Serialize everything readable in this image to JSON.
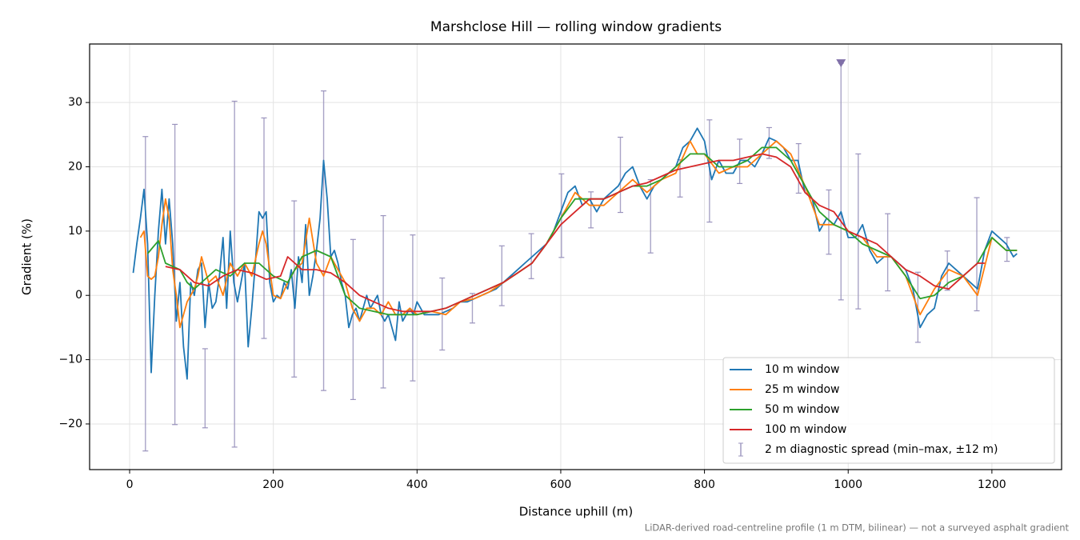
{
  "chart_data": {
    "type": "line",
    "title": "Marshclose Hill — rolling window gradients",
    "xlabel": "Distance uphill (m)",
    "ylabel": "Gradient (%)",
    "note": "LiDAR-derived road-centreline profile (1 m DTM, bilinear) — not a surveyed asphalt gradient",
    "xlim": [
      -55.7,
      1297
    ],
    "ylim": [
      -27.1,
      39.1
    ],
    "xticks": [
      0,
      200,
      400,
      600,
      800,
      1000,
      1200
    ],
    "yticks": [
      {
        "value": -20,
        "label": "−20"
      },
      {
        "value": -10,
        "label": "−10"
      },
      0,
      10,
      20,
      30
    ],
    "grid": true,
    "legend": "lower right",
    "series": [
      {
        "name": "10 m window",
        "color": "#1f77b4",
        "x": [
          5,
          10,
          15,
          20,
          25,
          30,
          35,
          40,
          45,
          50,
          55,
          60,
          65,
          70,
          75,
          80,
          85,
          90,
          95,
          100,
          105,
          110,
          115,
          120,
          125,
          130,
          135,
          140,
          145,
          150,
          155,
          160,
          165,
          170,
          175,
          180,
          185,
          190,
          195,
          200,
          205,
          210,
          215,
          220,
          225,
          230,
          235,
          240,
          245,
          250,
          255,
          260,
          265,
          270,
          275,
          280,
          285,
          290,
          295,
          300,
          305,
          310,
          315,
          320,
          325,
          330,
          335,
          340,
          345,
          350,
          355,
          360,
          365,
          370,
          375,
          380,
          385,
          390,
          395,
          400,
          405,
          410,
          420,
          430,
          440,
          450,
          460,
          470,
          480,
          490,
          500,
          510,
          520,
          530,
          540,
          550,
          560,
          570,
          580,
          590,
          600,
          610,
          620,
          630,
          640,
          650,
          660,
          670,
          680,
          690,
          700,
          710,
          720,
          730,
          740,
          750,
          760,
          770,
          780,
          790,
          800,
          810,
          820,
          830,
          840,
          850,
          860,
          870,
          880,
          890,
          900,
          910,
          920,
          930,
          940,
          950,
          960,
          970,
          980,
          990,
          1000,
          1010,
          1020,
          1030,
          1040,
          1050,
          1060,
          1070,
          1080,
          1090,
          1100,
          1110,
          1120,
          1130,
          1140,
          1150,
          1160,
          1170,
          1180,
          1190,
          1200,
          1210,
          1220,
          1230,
          1235
        ],
        "values": [
          3.5,
          8,
          12,
          16.5,
          8,
          -12,
          0,
          10,
          16.5,
          8,
          15,
          8,
          -4,
          2,
          -8,
          -13,
          2,
          0,
          4,
          5,
          -5,
          2,
          -2,
          -1,
          3,
          9,
          -2,
          10,
          2,
          -1,
          2,
          5,
          -8,
          -2,
          5,
          13,
          12,
          13,
          2,
          -1,
          0,
          -0.5,
          2,
          1,
          4,
          -2,
          6,
          2,
          11,
          0,
          3,
          7,
          12,
          21,
          15,
          6,
          7,
          5,
          2,
          0,
          -5,
          -3,
          -2,
          -4,
          -2,
          0,
          -2,
          -1,
          0,
          -3,
          -4,
          -3,
          -5,
          -7,
          -1,
          -4,
          -3,
          -2,
          -3,
          -1,
          -2,
          -3,
          -3,
          -3,
          -2.5,
          -2,
          -1,
          -1,
          -0.5,
          0,
          0.5,
          1,
          2,
          3,
          4,
          5,
          6,
          7,
          8,
          10,
          13,
          16,
          17,
          14,
          15,
          13,
          15,
          16,
          17,
          19,
          20,
          17,
          15,
          17,
          18,
          19,
          20,
          23,
          24,
          26,
          24,
          18,
          21,
          19,
          19,
          21,
          21,
          20,
          22,
          24.5,
          24,
          23,
          21,
          21,
          16,
          15,
          10,
          12,
          11,
          13,
          9,
          9,
          11,
          7,
          5,
          6,
          6,
          5,
          4,
          1,
          -5,
          -3,
          -2,
          3,
          5,
          4,
          3,
          2,
          1,
          7,
          10,
          9,
          8,
          6,
          6.5
        ]
      },
      {
        "name": "25 m window",
        "color": "#ff7f0e",
        "x": [
          15,
          20,
          25,
          30,
          35,
          40,
          45,
          50,
          55,
          60,
          65,
          70,
          75,
          80,
          85,
          90,
          95,
          100,
          110,
          120,
          130,
          140,
          150,
          160,
          170,
          180,
          185,
          190,
          200,
          210,
          220,
          230,
          240,
          250,
          260,
          270,
          280,
          290,
          300,
          310,
          320,
          330,
          340,
          350,
          360,
          370,
          380,
          390,
          400,
          420,
          440,
          460,
          480,
          500,
          520,
          540,
          560,
          580,
          600,
          620,
          640,
          660,
          680,
          700,
          720,
          740,
          760,
          780,
          790,
          800,
          820,
          840,
          860,
          880,
          900,
          920,
          940,
          960,
          980,
          1000,
          1020,
          1040,
          1060,
          1080,
          1100,
          1120,
          1140,
          1160,
          1180,
          1200,
          1220,
          1235
        ],
        "values": [
          9,
          10,
          3,
          2.5,
          3,
          6,
          11,
          15,
          12,
          4,
          0,
          -5,
          -3,
          -1,
          0,
          1,
          3,
          6,
          2,
          3,
          0,
          5,
          3,
          5,
          3,
          8,
          10,
          8,
          0,
          -0.5,
          2,
          4,
          5,
          12,
          5,
          3,
          6,
          4,
          2,
          -2,
          -4,
          -2,
          -2,
          -3,
          -1,
          -3,
          -3,
          -2,
          -3,
          -2.5,
          -3,
          -1,
          -0.5,
          0.5,
          2,
          3.5,
          5,
          8,
          12,
          16,
          14,
          14,
          16,
          18,
          16,
          18,
          19,
          24,
          22,
          22,
          19,
          20,
          20,
          22,
          24,
          22,
          17,
          11,
          11,
          10,
          9,
          6,
          6,
          3,
          -3,
          1,
          4,
          3,
          0,
          9,
          7,
          7
        ]
      },
      {
        "name": "50 m window",
        "color": "#2ca02c",
        "x": [
          25,
          40,
          50,
          60,
          70,
          80,
          90,
          100,
          120,
          140,
          160,
          180,
          200,
          220,
          240,
          260,
          280,
          300,
          320,
          340,
          360,
          380,
          400,
          420,
          440,
          460,
          480,
          500,
          520,
          540,
          560,
          580,
          600,
          620,
          640,
          660,
          680,
          700,
          720,
          740,
          760,
          780,
          800,
          820,
          840,
          860,
          880,
          900,
          920,
          940,
          960,
          980,
          1000,
          1020,
          1040,
          1060,
          1080,
          1100,
          1120,
          1140,
          1160,
          1180,
          1200,
          1220,
          1235
        ],
        "values": [
          6.5,
          8.5,
          5,
          4.5,
          4,
          2,
          1,
          2,
          4,
          3,
          5,
          5,
          3,
          2,
          6,
          7,
          6,
          0,
          -2,
          -2.5,
          -3,
          -3,
          -3,
          -2.5,
          -2,
          -1,
          0,
          1,
          2,
          3.5,
          5,
          8,
          12,
          15,
          15,
          15,
          16,
          17,
          17,
          18,
          20,
          22,
          22,
          20,
          20,
          21,
          23,
          23,
          21,
          17,
          13,
          11,
          10,
          8,
          7,
          6,
          3,
          -0.5,
          0,
          2,
          3,
          5,
          9,
          7,
          7
        ]
      },
      {
        "name": "100 m window",
        "color": "#d62728",
        "x": [
          50,
          70,
          90,
          110,
          130,
          150,
          170,
          190,
          210,
          220,
          240,
          260,
          280,
          300,
          320,
          340,
          360,
          380,
          400,
          420,
          440,
          460,
          480,
          500,
          520,
          540,
          560,
          580,
          600,
          620,
          640,
          660,
          680,
          700,
          720,
          740,
          760,
          780,
          800,
          820,
          840,
          860,
          880,
          900,
          920,
          940,
          960,
          980,
          1000,
          1020,
          1040,
          1060,
          1080,
          1100,
          1120,
          1140,
          1160,
          1180,
          1190
        ],
        "values": [
          4.5,
          4,
          2,
          1.5,
          3,
          4,
          3.5,
          2.5,
          3,
          6,
          4,
          4,
          3.5,
          2,
          0,
          -1,
          -2,
          -2.5,
          -2.5,
          -2.5,
          -2,
          -1,
          0,
          1,
          2,
          3.5,
          5,
          8,
          11,
          13,
          15,
          15,
          16,
          17,
          17.5,
          18.5,
          19.5,
          20,
          20.5,
          21,
          21,
          21.5,
          22,
          21.5,
          20,
          16,
          14,
          13,
          10,
          9,
          8,
          6,
          4,
          3,
          1.5,
          1,
          3,
          5,
          5
        ]
      }
    ],
    "errorbars": {
      "name": "2 m diagnostic spread (min–max, ±12 m)",
      "color": "#9a93bd",
      "x": [
        22,
        63,
        105,
        146,
        187,
        229,
        270,
        311,
        353,
        394,
        435,
        477,
        518,
        559,
        601,
        642,
        683,
        725,
        766,
        807,
        849,
        890,
        931,
        973,
        990,
        1014,
        1055,
        1097,
        1138,
        1179,
        1221
      ],
      "high": [
        24.7,
        26.6,
        -8.3,
        30.2,
        27.6,
        14.7,
        31.8,
        8.7,
        12.4,
        9.4,
        2.7,
        0.3,
        7.7,
        9.6,
        18.9,
        16.1,
        24.6,
        18.0,
        21.1,
        27.3,
        24.3,
        26.1,
        23.6,
        16.4,
        36.1,
        22.0,
        12.7,
        3.6,
        6.9,
        15.2,
        9.0
      ],
      "low": [
        -24.2,
        -20.1,
        -20.6,
        -23.6,
        -6.7,
        -12.7,
        -14.8,
        -16.2,
        -14.4,
        -13.3,
        -8.5,
        -4.3,
        -1.6,
        2.6,
        5.9,
        10.5,
        12.9,
        6.6,
        15.3,
        11.4,
        17.4,
        21.3,
        15.9,
        6.4,
        -0.7,
        -2.1,
        0.7,
        -7.3,
        0.8,
        -2.4,
        5.3
      ]
    },
    "clip_markers": {
      "color": "#8070a8",
      "x": [
        990
      ],
      "values": [
        36.1
      ]
    }
  }
}
